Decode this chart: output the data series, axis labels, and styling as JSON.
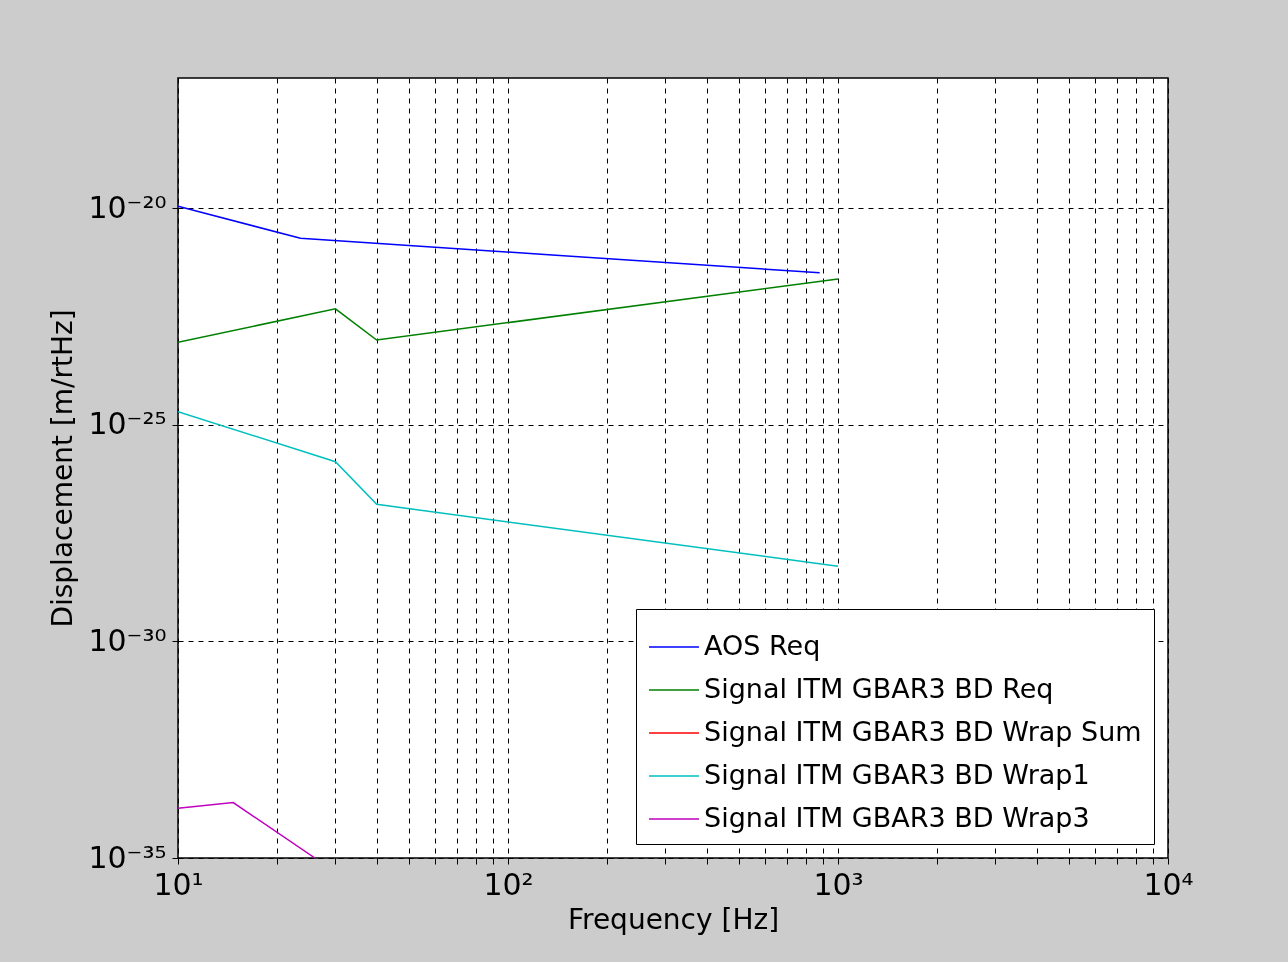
{
  "chart_data": {
    "type": "line",
    "xlabel": "Frequency [Hz]",
    "ylabel": "Displacement [m/rtHz]",
    "log": "xy",
    "grid": true,
    "legend": "bottom right",
    "xlim": [
      10,
      10000
    ],
    "ylim": [
      1e-35,
      1e-17
    ],
    "xticks": [
      {
        "value": 10,
        "label": "10¹"
      },
      {
        "value": 20,
        "label": null
      },
      {
        "value": 30,
        "label": null
      },
      {
        "value": 40,
        "label": null
      },
      {
        "value": 50,
        "label": null
      },
      {
        "value": 60,
        "label": null
      },
      {
        "value": 70,
        "label": null
      },
      {
        "value": 80,
        "label": null
      },
      {
        "value": 90,
        "label": null
      },
      {
        "value": 100,
        "label": "10²"
      },
      {
        "value": 200,
        "label": null
      },
      {
        "value": 300,
        "label": null
      },
      {
        "value": 400,
        "label": null
      },
      {
        "value": 500,
        "label": null
      },
      {
        "value": 600,
        "label": null
      },
      {
        "value": 700,
        "label": null
      },
      {
        "value": 800,
        "label": null
      },
      {
        "value": 900,
        "label": null
      },
      {
        "value": 1000,
        "label": "10³"
      },
      {
        "value": 2000,
        "label": null
      },
      {
        "value": 3000,
        "label": null
      },
      {
        "value": 4000,
        "label": null
      },
      {
        "value": 5000,
        "label": null
      },
      {
        "value": 6000,
        "label": null
      },
      {
        "value": 7000,
        "label": null
      },
      {
        "value": 8000,
        "label": null
      },
      {
        "value": 9000,
        "label": null
      },
      {
        "value": 10000,
        "label": "10⁴"
      }
    ],
    "yticks": [
      {
        "value": 1e-35,
        "label": "10⁻³⁵"
      },
      {
        "value": 1e-30,
        "label": "10⁻³⁰"
      },
      {
        "value": 1e-25,
        "label": "10⁻²⁵"
      },
      {
        "value": 1e-20,
        "label": "10⁻²⁰"
      }
    ],
    "series": [
      {
        "name": "AOS Req",
        "color": "#0000ff",
        "x": [
          10,
          23.5,
          880
        ],
        "values": [
          1.1e-20,
          2e-21,
          3.2e-22
        ]
      },
      {
        "name": "Signal ITM GBAR3 BD Req",
        "color": "#008000",
        "x": [
          10,
          30,
          40,
          1000
        ],
        "values": [
          8e-24,
          4.7e-23,
          9e-24,
          2.3e-22
        ]
      },
      {
        "name": "Signal ITM GBAR3 BD Wrap Sum",
        "color": "#ff0000"
      },
      {
        "name": "Signal ITM GBAR3 BD Wrap1",
        "color": "#00bfbf",
        "x": [
          10,
          30,
          40,
          1000
        ],
        "values": [
          2e-25,
          1.4e-26,
          1.45e-27,
          5.4e-29
        ]
      },
      {
        "name": "Signal ITM GBAR3 BD Wrap3",
        "color": "#bf00bf",
        "x": [
          10,
          14.7,
          26
        ],
        "values": [
          1.4e-34,
          1.9e-34,
          1e-35
        ]
      }
    ]
  }
}
